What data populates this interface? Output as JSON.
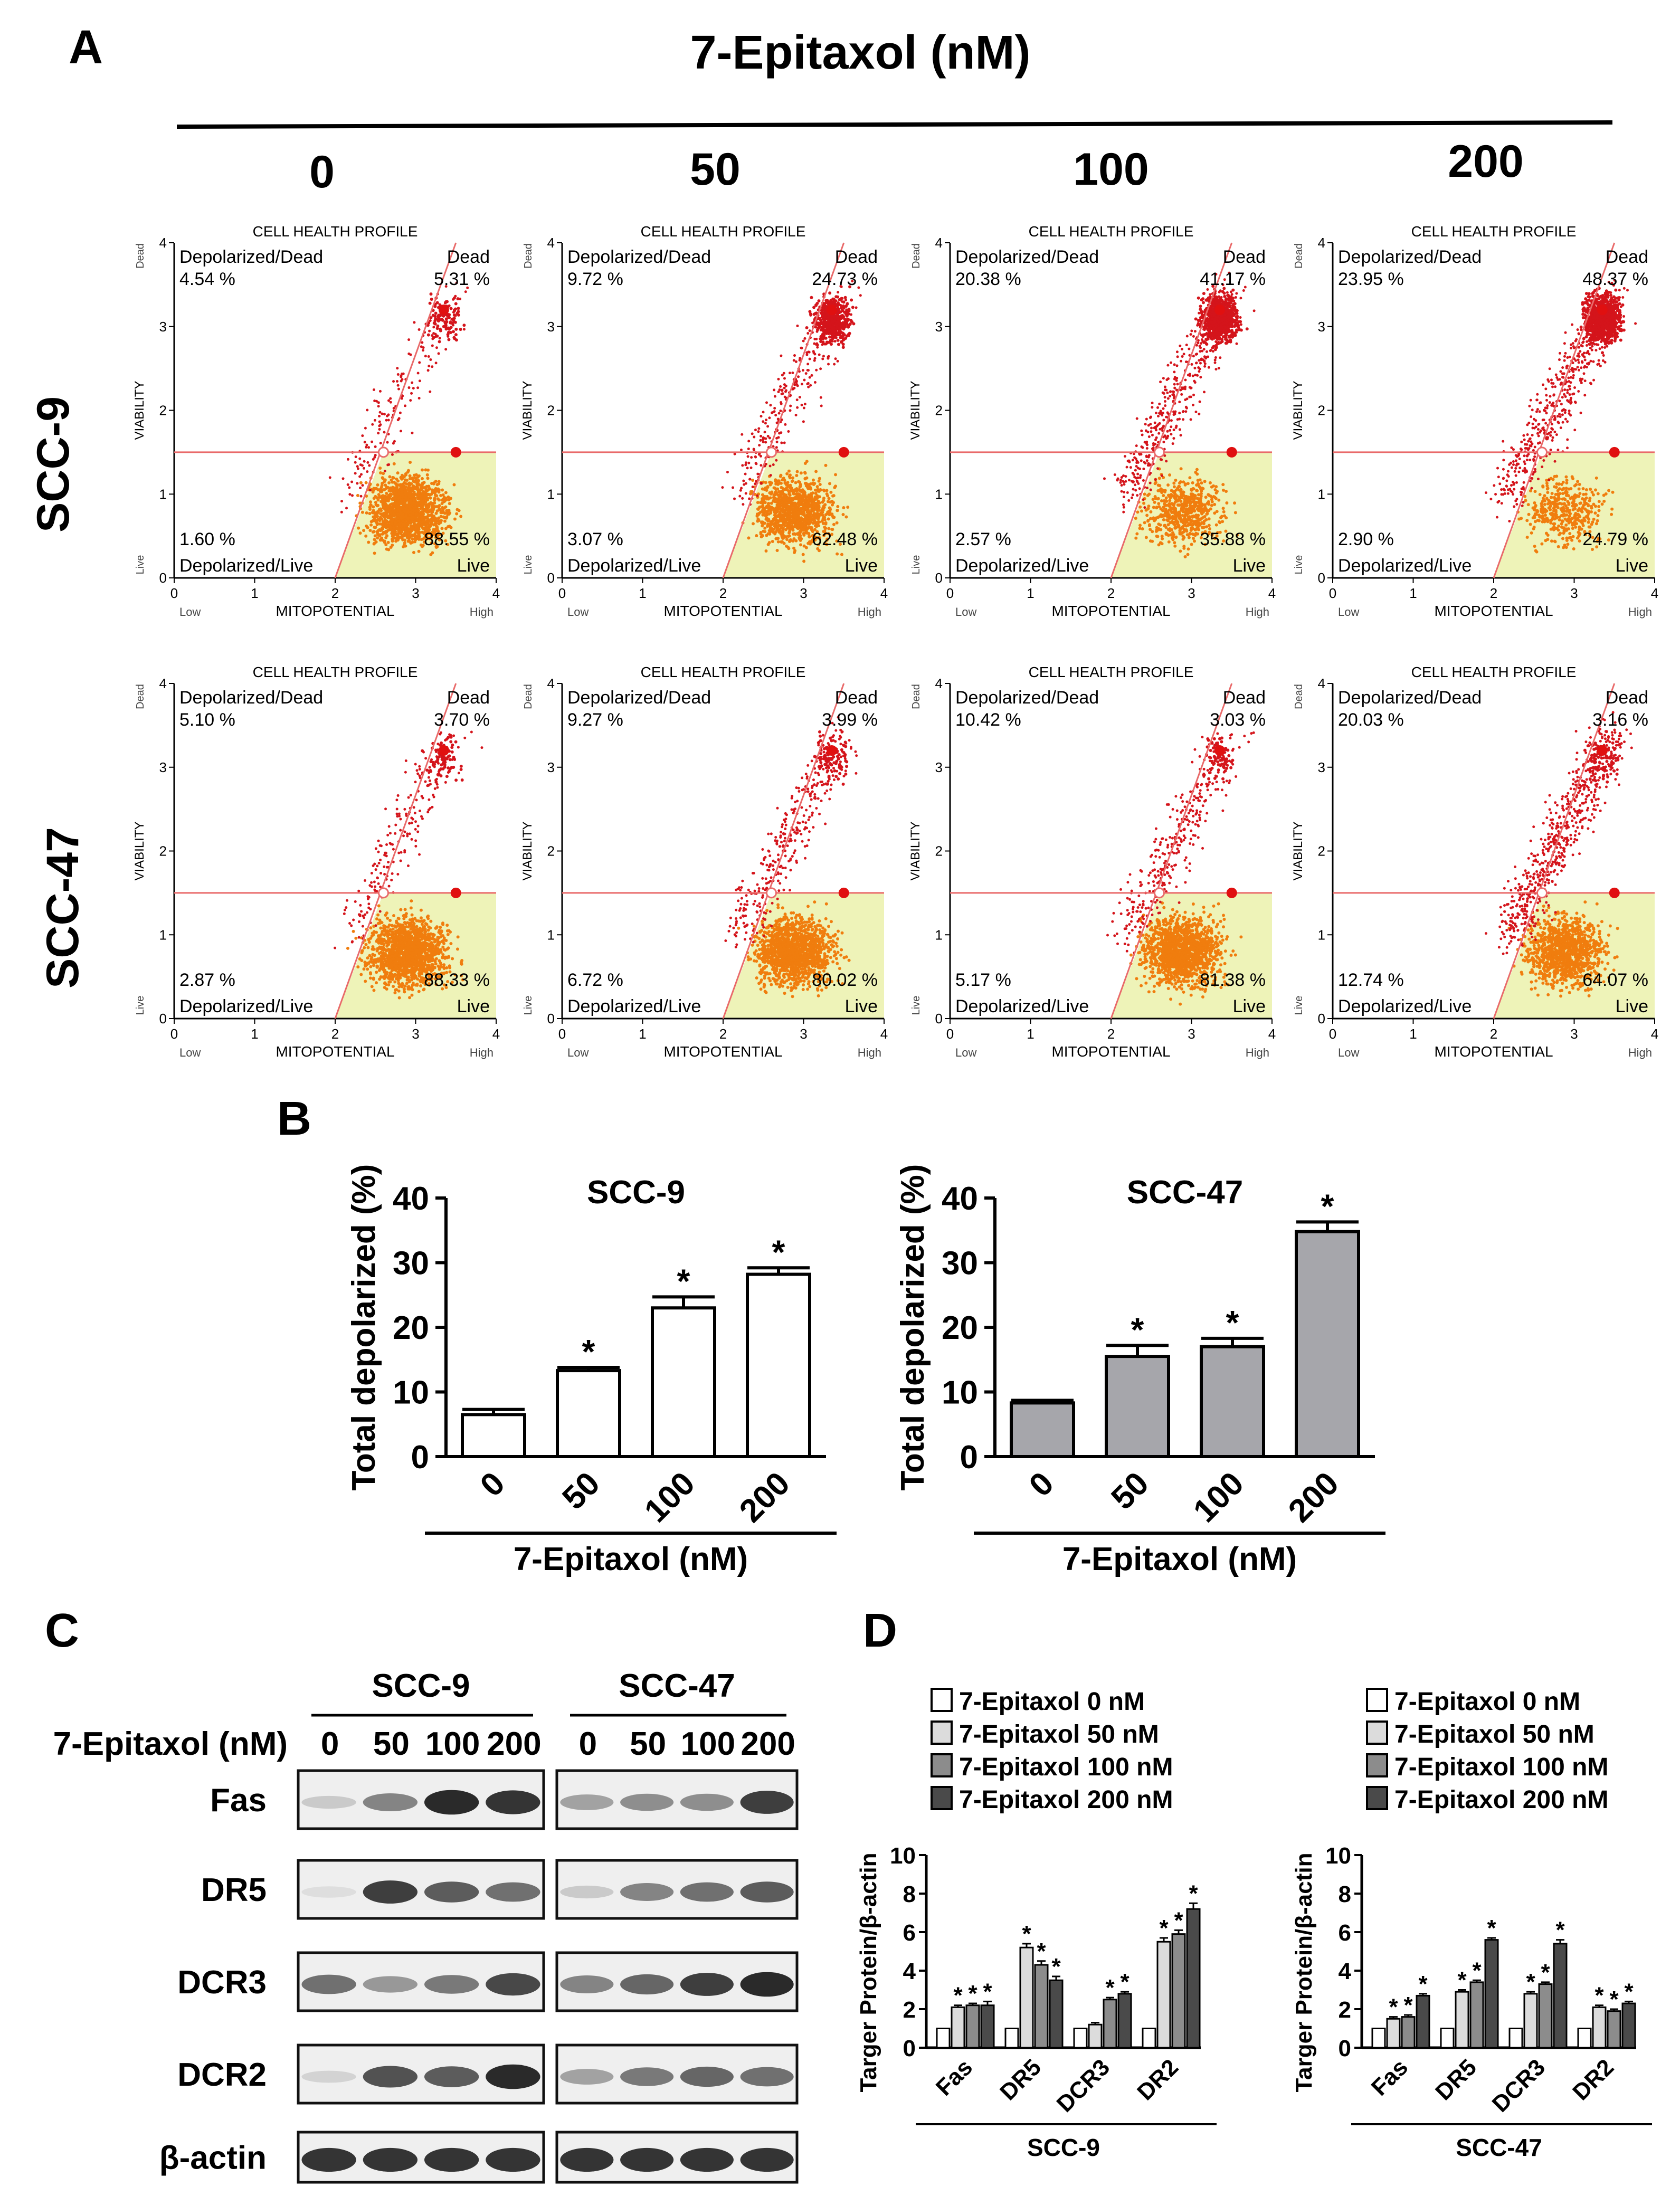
{
  "panels": {
    "A": "A",
    "B": "B",
    "C": "C",
    "D": "D"
  },
  "panelA": {
    "title": "7-Epitaxol (nM)",
    "doses": [
      "0",
      "50",
      "100",
      "200"
    ],
    "rows": [
      {
        "cell": "SCC-9",
        "quads": [
          [
            "4.54 %",
            "5.31 %",
            "1.60 %",
            "88.55 %"
          ],
          [
            "9.72 %",
            "24.73 %",
            "3.07 %",
            "62.48 %"
          ],
          [
            "20.38 %",
            "41.17 %",
            "2.57 %",
            "35.88 %"
          ],
          [
            "23.95 %",
            "48.37 %",
            "2.90 %",
            "24.79 %"
          ]
        ]
      },
      {
        "cell": "SCC-47",
        "quads": [
          [
            "5.10 %",
            "3.70 %",
            "2.87 %",
            "88.33 %"
          ],
          [
            "9.27 %",
            "3.99 %",
            "6.72 %",
            "80.02 %"
          ],
          [
            "10.42 %",
            "3.03 %",
            "5.17 %",
            "81.38 %"
          ],
          [
            "20.03 %",
            "3.16 %",
            "12.74 %",
            "64.07 %"
          ]
        ]
      }
    ],
    "plot_labels": {
      "title": "CELL HEALTH PROFILE",
      "ul": "Depolarized/Dead",
      "ur": "Dead",
      "ll": "Depolarized/Live",
      "lr": "Live",
      "xlabel": "MITOPOTENTIAL",
      "ylabel": "VIABILITY",
      "x_low": "Low",
      "x_high": "High",
      "y_low": "Live",
      "y_high": "Dead",
      "ticks": [
        "0",
        "1",
        "2",
        "3",
        "4"
      ]
    }
  },
  "chart_data": [
    {
      "type": "bar",
      "title": "SCC-9",
      "categories": [
        "0",
        "50",
        "100",
        "200"
      ],
      "values": [
        6.5,
        13.3,
        23.0,
        28.2
      ],
      "errors": [
        0.8,
        0.5,
        1.7,
        1.0
      ],
      "significance": [
        "",
        "*",
        "*",
        "*"
      ],
      "ylabel": "Total depolarized (%)",
      "xlabel": "7-Epitaxol (nM)",
      "ylim": [
        0,
        40
      ],
      "yticks": [
        "0",
        "10",
        "20",
        "30",
        "40"
      ],
      "star": "*",
      "color": "#ffffff"
    },
    {
      "type": "bar",
      "title": "SCC-47",
      "categories": [
        "0",
        "50",
        "100",
        "200"
      ],
      "values": [
        8.3,
        15.5,
        17.0,
        34.8
      ],
      "errors": [
        0.4,
        1.7,
        1.3,
        1.5
      ],
      "significance": [
        "",
        "*",
        "*",
        "*"
      ],
      "ylabel": "Total depolarized (%)",
      "xlabel": "7-Epitaxol (nM)",
      "ylim": [
        0,
        40
      ],
      "yticks": [
        "0",
        "10",
        "20",
        "30",
        "40"
      ],
      "star": "*",
      "color": "#a6a6ab"
    },
    {
      "type": "bar",
      "title": "SCC-9",
      "categories": [
        "Fas",
        "DR5",
        "DCR3",
        "DR2"
      ],
      "series": [
        {
          "name": "7-Epitaxol 0 nM",
          "values": [
            1.0,
            1.0,
            1.0,
            1.0
          ],
          "errors": [
            0,
            0,
            0,
            0
          ]
        },
        {
          "name": "7-Epitaxol 50 nM",
          "values": [
            2.1,
            5.2,
            1.2,
            5.5
          ],
          "errors": [
            0.1,
            0.2,
            0.1,
            0.2
          ]
        },
        {
          "name": "7-Epitaxol 100 nM",
          "values": [
            2.2,
            4.3,
            2.5,
            5.9
          ],
          "errors": [
            0.1,
            0.2,
            0.1,
            0.2
          ]
        },
        {
          "name": "7-Epitaxol 200 nM",
          "values": [
            2.2,
            3.5,
            2.8,
            7.2
          ],
          "errors": [
            0.2,
            0.2,
            0.1,
            0.3
          ]
        }
      ],
      "significance": [
        [
          "",
          "*",
          "*",
          "*"
        ],
        [
          "",
          "*",
          "*",
          "*"
        ],
        [
          "",
          "",
          "*",
          "*"
        ],
        [
          "",
          "*",
          "*",
          "*"
        ]
      ],
      "ylabel": "Targer Protein/β-actin",
      "group_label": "SCC-9",
      "ylim": [
        0,
        10
      ],
      "yticks": [
        "0",
        "2",
        "4",
        "6",
        "8",
        "10"
      ],
      "star": "*"
    },
    {
      "type": "bar",
      "title": "SCC-47",
      "categories": [
        "Fas",
        "DR5",
        "DCR3",
        "DR2"
      ],
      "series": [
        {
          "name": "7-Epitaxol 0 nM",
          "values": [
            1.0,
            1.0,
            1.0,
            1.0
          ],
          "errors": [
            0,
            0,
            0,
            0
          ]
        },
        {
          "name": "7-Epitaxol 50 nM",
          "values": [
            1.5,
            2.9,
            2.8,
            2.1
          ],
          "errors": [
            0.1,
            0.1,
            0.1,
            0.1
          ]
        },
        {
          "name": "7-Epitaxol 100 nM",
          "values": [
            1.6,
            3.4,
            3.3,
            1.9
          ],
          "errors": [
            0.1,
            0.1,
            0.1,
            0.1
          ]
        },
        {
          "name": "7-Epitaxol 200 nM",
          "values": [
            2.7,
            5.6,
            5.4,
            2.3
          ],
          "errors": [
            0.1,
            0.1,
            0.2,
            0.1
          ]
        }
      ],
      "significance": [
        [
          "",
          "*",
          "*",
          "*"
        ],
        [
          "",
          "*",
          "*",
          "*"
        ],
        [
          "",
          "*",
          "*",
          "*"
        ],
        [
          "",
          "*",
          "*",
          "*"
        ]
      ],
      "ylabel": "Targer Protein/β-actin",
      "group_label": "SCC-47",
      "ylim": [
        0,
        10
      ],
      "yticks": [
        "0",
        "2",
        "4",
        "6",
        "8",
        "10"
      ],
      "star": "*"
    }
  ],
  "panelC": {
    "cells": [
      "SCC-9",
      "SCC-47"
    ],
    "dose_label": "7-Epitaxol (nM)",
    "doses": [
      "0",
      "50",
      "100",
      "200"
    ],
    "proteins": [
      "Fas",
      "DR5",
      "DCR3",
      "DCR2",
      "β-actin"
    ],
    "intensity": [
      [
        [
          0.15,
          0.5,
          0.95,
          0.9
        ],
        [
          0.35,
          0.45,
          0.45,
          0.85
        ]
      ],
      [
        [
          0.05,
          0.85,
          0.7,
          0.6
        ],
        [
          0.15,
          0.5,
          0.6,
          0.7
        ]
      ],
      [
        [
          0.6,
          0.4,
          0.55,
          0.8
        ],
        [
          0.5,
          0.65,
          0.85,
          0.95
        ]
      ],
      [
        [
          0.1,
          0.75,
          0.7,
          0.95
        ],
        [
          0.35,
          0.55,
          0.65,
          0.6
        ]
      ],
      [
        [
          0.9,
          0.9,
          0.9,
          0.9
        ],
        [
          0.9,
          0.9,
          0.9,
          0.9
        ]
      ]
    ]
  },
  "colors": {
    "dot_red": "#d4141b",
    "dot_orange": "#f07d0e",
    "live_fill": "#eef3b8",
    "gate_line": "#e96a6a",
    "bar_gray": "#a6a6ab",
    "legend": [
      "#ffffff",
      "#dcdcdc",
      "#8c8c8c",
      "#4a4a4a"
    ]
  }
}
